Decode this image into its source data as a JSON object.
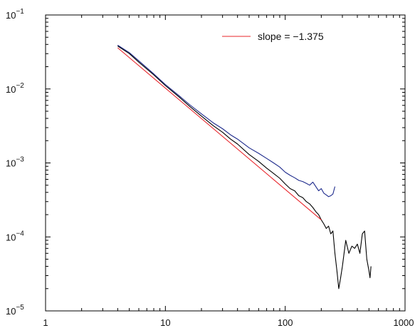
{
  "chart_data": {
    "type": "line",
    "xscale": "log",
    "yscale": "log",
    "xlim": [
      1,
      1000
    ],
    "ylim": [
      1e-05,
      0.1
    ],
    "x_ticks": [
      {
        "value": 1,
        "label": "1"
      },
      {
        "value": 10,
        "label": "10"
      },
      {
        "value": 100,
        "label": "100"
      },
      {
        "value": 1000,
        "label": "1000"
      }
    ],
    "y_ticks": [
      {
        "value": 0.1,
        "base": "10",
        "exp": "−1"
      },
      {
        "value": 0.01,
        "base": "10",
        "exp": "−2"
      },
      {
        "value": 0.001,
        "base": "10",
        "exp": "−3"
      },
      {
        "value": 0.0001,
        "base": "10",
        "exp": "−4"
      },
      {
        "value": 1e-05,
        "base": "10",
        "exp": "−5"
      }
    ],
    "grid": false,
    "legend_position": "top-right",
    "series": [
      {
        "name": "slope = −1.375",
        "color": "#e8242a",
        "style": "line",
        "x": [
          4,
          200
        ],
        "y": [
          0.036,
          0.00017
        ]
      },
      {
        "color": "#1d2a8c",
        "style": "line",
        "x": [
          4,
          5,
          6,
          8,
          10,
          13,
          16,
          20,
          25,
          30,
          35,
          40,
          50,
          60,
          70,
          80,
          90,
          100,
          110,
          120,
          130,
          140,
          150,
          160,
          170,
          180,
          190,
          200,
          210,
          220,
          230,
          240,
          250,
          260
        ],
        "y": [
          0.039,
          0.031,
          0.024,
          0.016,
          0.0115,
          0.0081,
          0.0061,
          0.0046,
          0.0035,
          0.0029,
          0.0024,
          0.0021,
          0.0016,
          0.00135,
          0.00115,
          0.001,
          0.00088,
          0.00075,
          0.00068,
          0.00063,
          0.00058,
          0.00056,
          0.00053,
          0.0005,
          0.00055,
          0.00048,
          0.00042,
          0.00045,
          0.00039,
          0.00037,
          0.00035,
          0.00036,
          0.00038,
          0.00048
        ]
      },
      {
        "color": "#000000",
        "style": "line",
        "x": [
          4,
          5,
          6,
          8,
          10,
          13,
          16,
          20,
          25,
          30,
          35,
          40,
          50,
          60,
          70,
          80,
          90,
          100,
          110,
          120,
          130,
          140,
          150,
          160,
          170,
          180,
          190,
          200,
          210,
          220,
          230,
          240,
          250,
          260,
          270,
          280,
          290,
          300,
          320,
          340,
          360,
          380,
          400,
          420,
          440,
          460,
          480,
          500,
          510,
          520
        ],
        "y": [
          0.038,
          0.03,
          0.023,
          0.0155,
          0.0111,
          0.0078,
          0.0058,
          0.0043,
          0.0032,
          0.0026,
          0.0021,
          0.0018,
          0.0013,
          0.00105,
          0.00085,
          0.00072,
          0.00062,
          0.00052,
          0.00045,
          0.00042,
          0.00036,
          0.00034,
          0.0003,
          0.00028,
          0.00025,
          0.00022,
          0.0002,
          0.00017,
          0.00015,
          0.00013,
          0.00014,
          0.00011,
          0.00012,
          6e-05,
          3.5e-05,
          2e-05,
          2.8e-05,
          4e-05,
          9e-05,
          6e-05,
          7.5e-05,
          7e-05,
          8e-05,
          6e-05,
          0.00011,
          0.00012,
          5e-05,
          3.5e-05,
          2.8e-05,
          4e-05
        ]
      }
    ]
  }
}
